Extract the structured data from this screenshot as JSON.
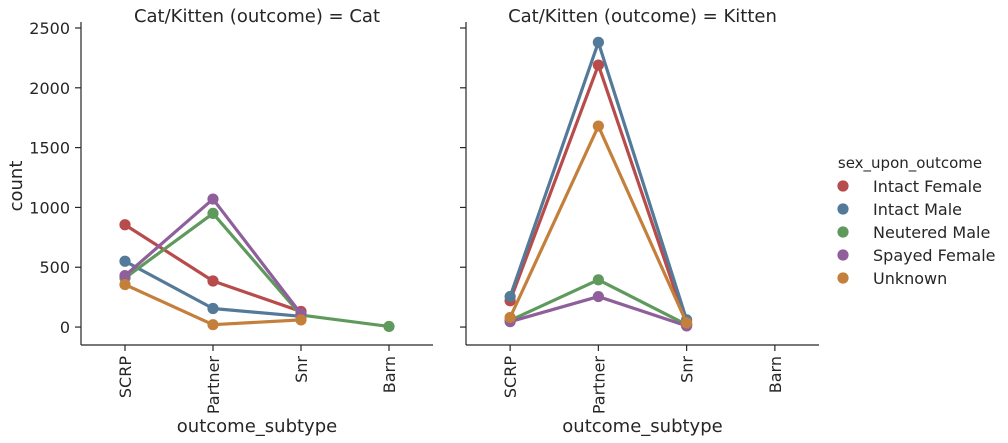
{
  "chart_data": {
    "type": "line",
    "categories": [
      "SCRP",
      "Partner",
      "Snr",
      "Barn"
    ],
    "xlabel": "outcome_subtype",
    "ylabel": "count",
    "ylim": [
      -150,
      2550
    ],
    "yticks": [
      0,
      500,
      1000,
      1500,
      2000,
      2500
    ],
    "legend": {
      "title": "sex_upon_outcome",
      "placement": "right",
      "entries": [
        "Intact Female",
        "Intact Male",
        "Neutered Male",
        "Spayed Female",
        "Unknown"
      ]
    },
    "colors": {
      "Intact Female": "#b84b4b",
      "Intact Male": "#547a99",
      "Neutered Male": "#5f9a5c",
      "Spayed Female": "#8f5f9c",
      "Unknown": "#c47f3b"
    },
    "panels": [
      {
        "title": "Cat/Kitten (outcome) = Cat",
        "series": [
          {
            "name": "Intact Female",
            "values": [
              855,
              385,
              130,
              null
            ]
          },
          {
            "name": "Intact Male",
            "values": [
              550,
              155,
              90,
              null
            ]
          },
          {
            "name": "Neutered Male",
            "values": [
              410,
              950,
              100,
              5
            ]
          },
          {
            "name": "Spayed Female",
            "values": [
              430,
              1070,
              110,
              null
            ]
          },
          {
            "name": "Unknown",
            "values": [
              355,
              20,
              60,
              null
            ]
          }
        ]
      },
      {
        "title": "Cat/Kitten (outcome) = Kitten",
        "series": [
          {
            "name": "Intact Female",
            "values": [
              220,
              2190,
              20,
              null
            ]
          },
          {
            "name": "Intact Male",
            "values": [
              255,
              2380,
              60,
              null
            ]
          },
          {
            "name": "Neutered Male",
            "values": [
              55,
              395,
              20,
              null
            ]
          },
          {
            "name": "Spayed Female",
            "values": [
              45,
              255,
              10,
              null
            ]
          },
          {
            "name": "Unknown",
            "values": [
              80,
              1680,
              35,
              null
            ]
          }
        ]
      }
    ]
  }
}
